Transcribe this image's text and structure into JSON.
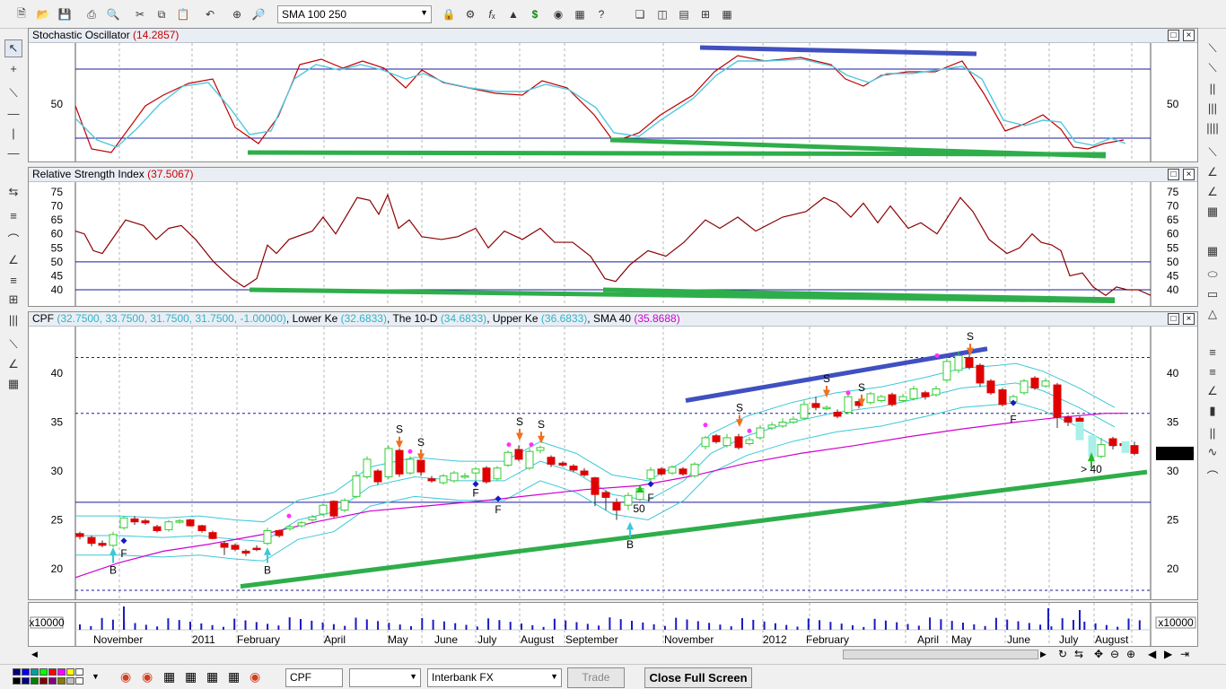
{
  "toolbar": {
    "symbol_combo": "SMA 100 250",
    "icons": [
      "new-icon",
      "open-icon",
      "save-icon",
      "print-icon",
      "print-preview-icon",
      "cut-icon",
      "copy-icon",
      "paste-icon",
      "undo-icon",
      "crosshair-icon",
      "zoom-icon",
      "function-icon",
      "dollar-icon",
      "binoculars-icon",
      "help-icon",
      "window-icon",
      "split-vertical-icon",
      "split-horizontal-icon",
      "tile-icon"
    ]
  },
  "panels": {
    "stoch": {
      "title": "Stochastic Oscillator",
      "value": "(14.2857)",
      "ticks": [
        "50"
      ]
    },
    "rsi": {
      "title": "Relative Strength Index",
      "value": "(37.5067)",
      "ticks": [
        "75",
        "70",
        "65",
        "60",
        "55",
        "50",
        "45",
        "40"
      ]
    },
    "price": {
      "symbol": "CPF",
      "ohlc": "(32.7500, 33.7500, 31.7500, 31.7500, -1.00000)",
      "lower": "Lower Ke",
      "lower_val": "(32.6833)",
      "mid": "The 10-D",
      "mid_val": "(34.6833)",
      "upper": "Upper Ke",
      "upper_val": "(36.6833)",
      "sma": "SMA 40",
      "sma_val": "(35.8688)",
      "ticks": [
        "40",
        "35",
        "30",
        "25",
        "20"
      ],
      "last_price": "31.7500",
      "annotations": {
        "s": "S",
        "f": "F",
        "b": "B",
        "fifty": "50",
        "gt40": "> 40"
      }
    },
    "volume": {
      "scale": "x10000",
      "scale_right": "x10000"
    }
  },
  "chart_data": {
    "type": "line",
    "title": "CPF",
    "x_labels": [
      "November",
      "2011",
      "February",
      "April",
      "May",
      "June",
      "July",
      "August",
      "September",
      "November",
      "2012",
      "February",
      "April",
      "May",
      "June",
      "July",
      "August"
    ],
    "series": [
      {
        "name": "Stochastic Oscillator",
        "last": 14.2857
      },
      {
        "name": "Relative Strength Index",
        "last": 37.5067
      },
      {
        "name": "Lower Ke",
        "last": 32.6833
      },
      {
        "name": "The 10-D",
        "last": 34.6833
      },
      {
        "name": "Upper Ke",
        "last": 36.6833
      },
      {
        "name": "SMA 40",
        "last": 35.8688
      }
    ],
    "price_range": [
      17,
      44
    ],
    "colors": {
      "up": "#33cc33",
      "down": "#e00000",
      "keltner": "#3cc8d8",
      "sma": "#d000d0",
      "trend_up": "#2eae4a",
      "trend_blue": "#4050c0"
    }
  },
  "bottom": {
    "symbol_field": "CPF",
    "provider": "Interbank FX",
    "trade": "Trade",
    "close_full": "Close Full Screen"
  }
}
